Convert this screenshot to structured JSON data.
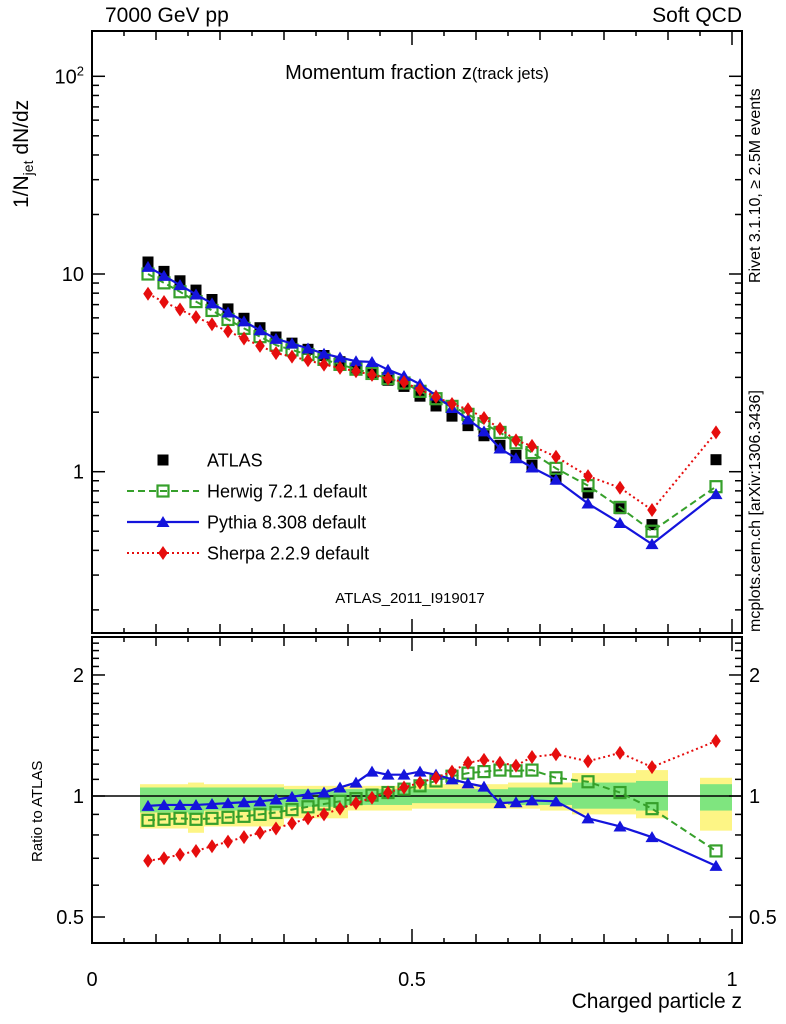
{
  "header": {
    "left": "7000 GeV pp",
    "right": "Soft QCD"
  },
  "title": {
    "main": "Momentum fraction z",
    "paren": "(track jets)"
  },
  "watermark": "ATLAS_2011_I919017",
  "side_notes": {
    "top": "Rivet 3.1.10, ≥ 2.5M events",
    "bottom": "mcplots.cern.ch [arXiv:1306.3436]"
  },
  "axes": {
    "y_top_label": {
      "pre": "1/N",
      "sub": "jet",
      "rest": " dN/dz"
    },
    "y_ratio_label": "Ratio to ATLAS",
    "x_label": "Charged particle z",
    "x_tick_labels": [
      {
        "v": 0,
        "t": "0"
      },
      {
        "v": 0.5,
        "t": "0.5"
      },
      {
        "v": 1,
        "t": "1"
      }
    ],
    "y_top_tick_labels": [
      {
        "v": 1,
        "t": "1"
      },
      {
        "v": 10,
        "t": "10"
      },
      {
        "v": 100,
        "t": "10",
        "sup": "2"
      }
    ],
    "y_ratio_tick_labels": [
      {
        "v": 2,
        "t": "2"
      },
      {
        "v": 1,
        "t": "1"
      },
      {
        "v": 0.5,
        "t": "0.5"
      }
    ]
  },
  "colors": {
    "atlas": "#000000",
    "herwig": "#36a02b",
    "pythia": "#1414dc",
    "sherpa": "#e60d0d",
    "band_yellow": "#fdf585",
    "band_green": "#7fe57f",
    "note_gray": "#909090",
    "watermark_gray": "#a8a8a8"
  },
  "chart_data": {
    "type": "scatter-line",
    "xlabel": "Charged particle z",
    "ylabel_top": "1/N_jet dN/dz",
    "ylabel_ratio": "Ratio to ATLAS",
    "x_range": [
      0,
      1.016
    ],
    "y_top_range_log": [
      0.15,
      170
    ],
    "y_ratio_range_log": [
      0.43,
      2.5
    ],
    "legend_position": "left-middle",
    "z": [
      0.0875,
      0.1125,
      0.1375,
      0.1625,
      0.1875,
      0.2125,
      0.2375,
      0.2625,
      0.2875,
      0.3125,
      0.3375,
      0.3625,
      0.3875,
      0.4125,
      0.4375,
      0.4625,
      0.4875,
      0.5125,
      0.5375,
      0.5625,
      0.5875,
      0.6125,
      0.6375,
      0.6625,
      0.6875,
      0.725,
      0.775,
      0.825,
      0.875,
      0.975
    ],
    "z_bin_widths": [
      0.025,
      0.025,
      0.025,
      0.025,
      0.025,
      0.025,
      0.025,
      0.025,
      0.025,
      0.025,
      0.025,
      0.025,
      0.025,
      0.025,
      0.025,
      0.025,
      0.025,
      0.025,
      0.025,
      0.025,
      0.025,
      0.025,
      0.025,
      0.025,
      0.025,
      0.05,
      0.05,
      0.05,
      0.05,
      0.05
    ],
    "series": [
      {
        "key": "atlas",
        "name": "ATLAS",
        "marker": "filled-square",
        "line": "none",
        "values": [
          11.5,
          10.31,
          9.24,
          8.29,
          7.43,
          6.66,
          5.97,
          5.35,
          4.8,
          4.47,
          4.16,
          3.87,
          3.6,
          3.35,
          3.12,
          2.9,
          2.7,
          2.41,
          2.15,
          1.91,
          1.71,
          1.52,
          1.36,
          1.21,
          1.08,
          0.94,
          0.78,
          0.65,
          0.54,
          1.15
        ]
      },
      {
        "key": "herwig",
        "name": "Herwig 7.2.1 default",
        "marker": "open-square",
        "line": "dashed",
        "values": [
          10.0,
          9.02,
          8.13,
          7.25,
          6.54,
          5.89,
          5.31,
          4.82,
          4.37,
          4.13,
          3.91,
          3.7,
          3.49,
          3.3,
          3.14,
          2.96,
          2.81,
          2.55,
          2.34,
          2.14,
          1.95,
          1.75,
          1.58,
          1.4,
          1.25,
          1.04,
          0.85,
          0.66,
          0.5,
          0.84
        ]
      },
      {
        "key": "pythia",
        "name": "Pythia 8.308 default",
        "marker": "filled-triangle",
        "line": "solid",
        "values": [
          10.87,
          9.79,
          8.78,
          7.88,
          7.1,
          6.39,
          5.76,
          5.19,
          4.7,
          4.45,
          4.2,
          3.95,
          3.78,
          3.62,
          3.59,
          3.28,
          3.05,
          2.77,
          2.43,
          2.1,
          1.84,
          1.6,
          1.31,
          1.17,
          1.05,
          0.91,
          0.69,
          0.55,
          0.43,
          0.77
        ]
      },
      {
        "key": "sherpa",
        "name": "Sherpa 2.2.9 default",
        "marker": "filled-diamond",
        "line": "dotted",
        "values": [
          7.94,
          7.22,
          6.61,
          6.05,
          5.57,
          5.13,
          4.72,
          4.33,
          3.98,
          3.82,
          3.66,
          3.48,
          3.35,
          3.22,
          3.09,
          2.96,
          2.84,
          2.6,
          2.39,
          2.2,
          2.07,
          1.87,
          1.65,
          1.44,
          1.35,
          1.19,
          0.95,
          0.83,
          0.64,
          1.58
        ]
      }
    ],
    "ratio": {
      "reference": "atlas",
      "series": [
        {
          "key": "herwig",
          "values": [
            0.87,
            0.875,
            0.88,
            0.875,
            0.88,
            0.885,
            0.89,
            0.9,
            0.91,
            0.925,
            0.94,
            0.955,
            0.97,
            0.985,
            1.005,
            1.02,
            1.04,
            1.06,
            1.09,
            1.12,
            1.14,
            1.15,
            1.16,
            1.155,
            1.16,
            1.11,
            1.085,
            1.02,
            0.93,
            0.73
          ]
        },
        {
          "key": "pythia",
          "values": [
            0.945,
            0.95,
            0.95,
            0.95,
            0.955,
            0.96,
            0.965,
            0.97,
            0.98,
            0.995,
            1.01,
            1.02,
            1.05,
            1.08,
            1.15,
            1.13,
            1.13,
            1.15,
            1.13,
            1.1,
            1.075,
            1.055,
            0.96,
            0.965,
            0.975,
            0.97,
            0.88,
            0.84,
            0.79,
            0.67
          ]
        },
        {
          "key": "sherpa",
          "values": [
            0.69,
            0.7,
            0.715,
            0.73,
            0.75,
            0.77,
            0.79,
            0.81,
            0.83,
            0.855,
            0.88,
            0.9,
            0.93,
            0.96,
            0.99,
            1.02,
            1.05,
            1.08,
            1.11,
            1.15,
            1.21,
            1.23,
            1.21,
            1.19,
            1.25,
            1.27,
            1.22,
            1.28,
            1.18,
            1.37
          ]
        }
      ],
      "band_yellow": [
        [
          0.83,
          1.07
        ],
        [
          0.83,
          1.07
        ],
        [
          0.83,
          1.07
        ],
        [
          0.81,
          1.08
        ],
        [
          0.84,
          1.07
        ],
        [
          0.84,
          1.07
        ],
        [
          0.84,
          1.07
        ],
        [
          0.84,
          1.07
        ],
        [
          0.84,
          1.07
        ],
        [
          0.88,
          1.06
        ],
        [
          0.88,
          1.06
        ],
        [
          0.88,
          1.06
        ],
        [
          0.88,
          1.06
        ],
        [
          0.92,
          1.06
        ],
        [
          0.92,
          1.06
        ],
        [
          0.92,
          1.06
        ],
        [
          0.92,
          1.06
        ],
        [
          0.93,
          1.07
        ],
        [
          0.93,
          1.07
        ],
        [
          0.93,
          1.07
        ],
        [
          0.93,
          1.07
        ],
        [
          0.93,
          1.07
        ],
        [
          0.93,
          1.07
        ],
        [
          0.93,
          1.08
        ],
        [
          0.93,
          1.08
        ],
        [
          0.92,
          1.08
        ],
        [
          0.9,
          1.14
        ],
        [
          0.9,
          1.14
        ],
        [
          0.88,
          1.16
        ],
        [
          0.82,
          1.11
        ]
      ],
      "band_green": [
        [
          0.91,
          1.05
        ],
        [
          0.91,
          1.05
        ],
        [
          0.91,
          1.05
        ],
        [
          0.9,
          1.05
        ],
        [
          0.92,
          1.05
        ],
        [
          0.92,
          1.05
        ],
        [
          0.92,
          1.05
        ],
        [
          0.92,
          1.05
        ],
        [
          0.92,
          1.05
        ],
        [
          0.94,
          1.04
        ],
        [
          0.94,
          1.04
        ],
        [
          0.94,
          1.04
        ],
        [
          0.94,
          1.04
        ],
        [
          0.95,
          1.04
        ],
        [
          0.95,
          1.04
        ],
        [
          0.95,
          1.04
        ],
        [
          0.95,
          1.04
        ],
        [
          0.96,
          1.04
        ],
        [
          0.96,
          1.04
        ],
        [
          0.96,
          1.04
        ],
        [
          0.96,
          1.04
        ],
        [
          0.96,
          1.04
        ],
        [
          0.96,
          1.04
        ],
        [
          0.95,
          1.05
        ],
        [
          0.95,
          1.05
        ],
        [
          0.95,
          1.05
        ],
        [
          0.93,
          1.08
        ],
        [
          0.93,
          1.08
        ],
        [
          0.92,
          1.09
        ],
        [
          0.92,
          1.07
        ]
      ]
    }
  }
}
